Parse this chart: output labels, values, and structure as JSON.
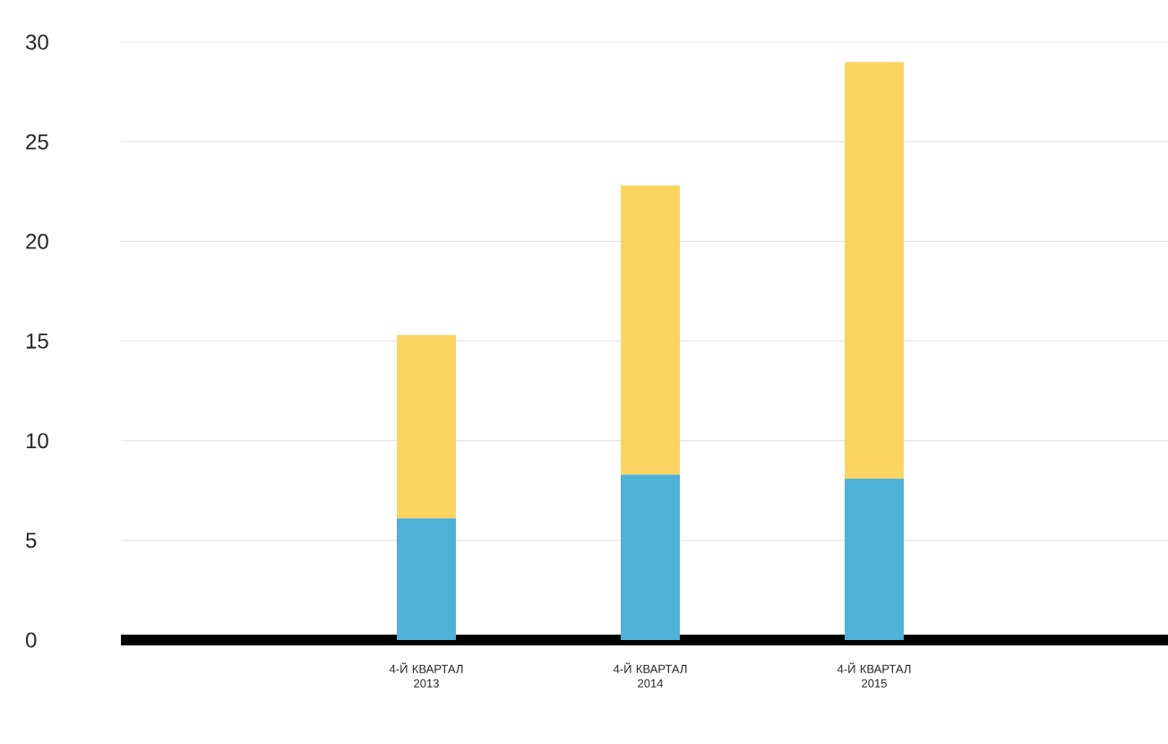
{
  "chart_data": {
    "type": "bar",
    "stacked": true,
    "categories": [
      "4-Й КВАРТАЛ 2013",
      "4-Й КВАРТАЛ 2014",
      "4-Й КВАРТАЛ 2015"
    ],
    "series": [
      {
        "color": "#4eb1d8",
        "values": [
          6.1,
          8.3,
          8.1
        ]
      },
      {
        "color": "#fcd462",
        "values": [
          9.2,
          14.5,
          20.9
        ]
      }
    ],
    "ylim": [
      0,
      30
    ],
    "yticks": [
      0,
      5,
      10,
      15,
      20,
      25,
      30
    ],
    "grid": "y"
  }
}
